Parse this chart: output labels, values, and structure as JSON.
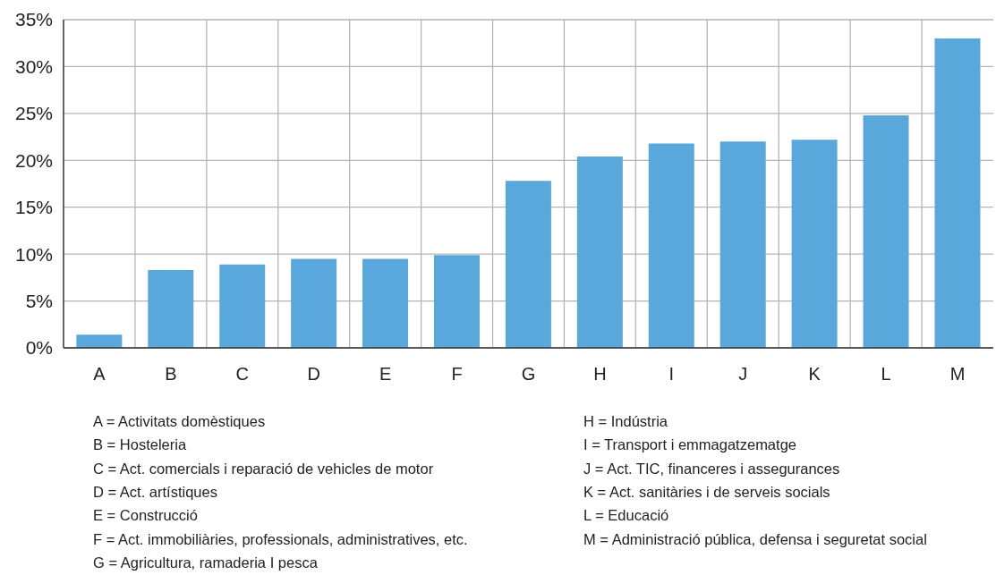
{
  "chart_data": {
    "type": "bar",
    "categories": [
      "A",
      "B",
      "C",
      "D",
      "E",
      "F",
      "G",
      "H",
      "I",
      "J",
      "K",
      "L",
      "M"
    ],
    "values": [
      1.4,
      8.3,
      8.9,
      9.5,
      9.5,
      9.9,
      17.8,
      20.4,
      21.8,
      22.0,
      22.2,
      24.8,
      33.0
    ],
    "color": "#5aa7dc",
    "ylim": [
      0,
      35
    ],
    "yticks": [
      {
        "value": 0,
        "label": "0%"
      },
      {
        "value": 5,
        "label": "5%"
      },
      {
        "value": 10,
        "label": "10%"
      },
      {
        "value": 15,
        "label": "15%"
      },
      {
        "value": 20,
        "label": "20%"
      },
      {
        "value": 25,
        "label": "25%"
      },
      {
        "value": 30,
        "label": "30%"
      },
      {
        "value": 35,
        "label": "35%"
      }
    ],
    "grid": true,
    "annotations": [
      "A = Activitats domèstiques",
      "B = Hosteleria",
      "C = Act. comercials i reparació de vehicles de motor",
      "D = Act. artístiques",
      "E = Construcció",
      "F = Act. immobiliàries, professionals, administratives, etc.",
      "G = Agricultura, ramaderia I pesca",
      "H = Indústria",
      "I = Transport i emmagatzematge",
      "J = Act. TIC, financeres i assegurances",
      "K = Act. sanitàries i de serveis socials",
      "L = Educació",
      "M = Administració pública, defensa i seguretat social"
    ]
  }
}
